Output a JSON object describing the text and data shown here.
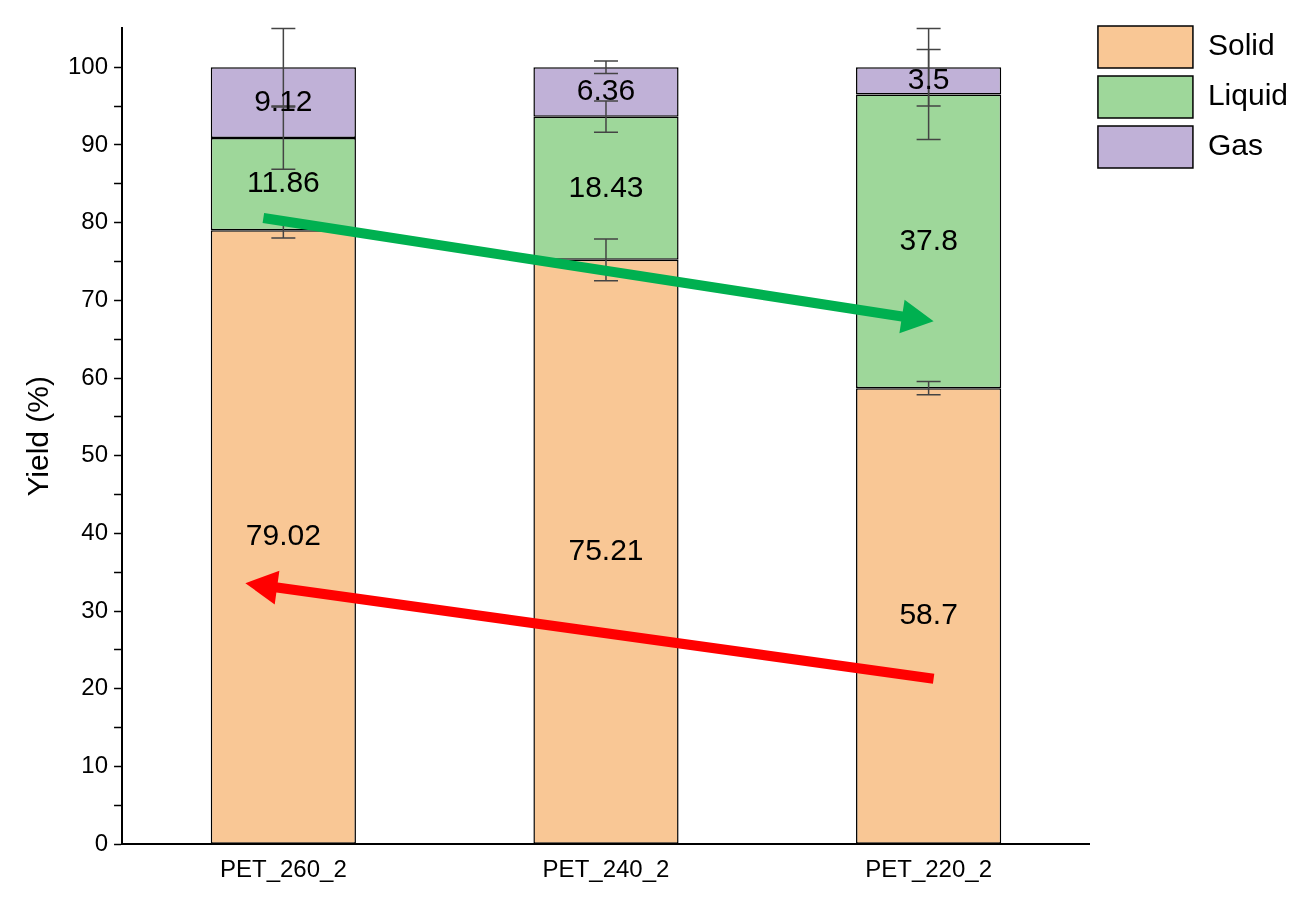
{
  "chart_data": {
    "type": "bar",
    "stacked": true,
    "ylabel": "Yield (%)",
    "categories": [
      "PET_260_2",
      "PET_240_2",
      "PET_220_2"
    ],
    "series": [
      {
        "name": "Solid",
        "color": "#f9c795",
        "values": [
          79.02,
          75.21,
          58.7
        ],
        "errors": [
          1,
          2.7,
          0.85
        ]
      },
      {
        "name": "Liquid",
        "color": "#9ed79a",
        "values": [
          11.86,
          18.43,
          37.8
        ],
        "errors": [
          4,
          2,
          5.8
        ]
      },
      {
        "name": "Gas",
        "color": "#c0b1d7",
        "values": [
          9.12,
          6.36,
          3.5
        ],
        "errors": [
          5,
          0.8,
          5
        ]
      }
    ],
    "ylim": [
      0,
      105
    ],
    "yticks": [
      0,
      {
        "value": 5,
        "label": null
      },
      10,
      {
        "value": 15,
        "label": null
      },
      20,
      {
        "value": 25,
        "label": null
      },
      30,
      {
        "value": 35,
        "label": null
      },
      40,
      {
        "value": 45,
        "label": null
      },
      50,
      {
        "value": 55,
        "label": null
      },
      60,
      {
        "value": 65,
        "label": null
      },
      70,
      {
        "value": 75,
        "label": null
      },
      80,
      {
        "value": 85,
        "label": null
      },
      90,
      {
        "value": 95,
        "label": null
      },
      100
    ],
    "data_labels": true,
    "legend": "top right",
    "grid": false
  }
}
